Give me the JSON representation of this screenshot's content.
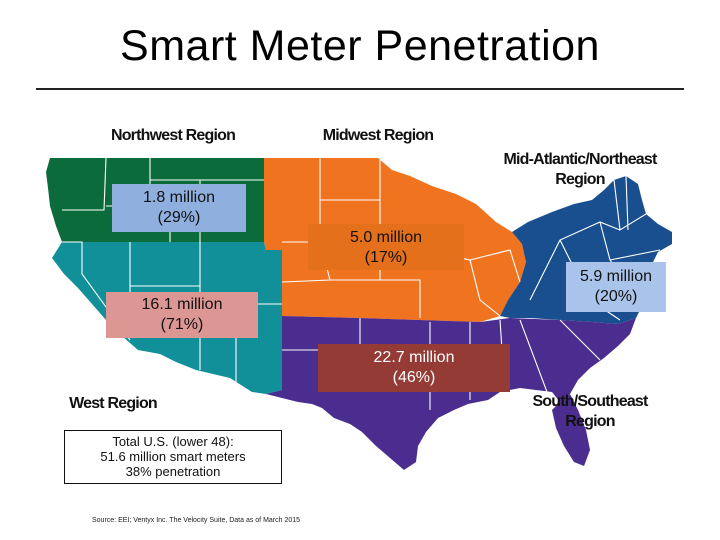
{
  "title": "Smart Meter Penetration",
  "colors": {
    "northwest": "#0b6b3a",
    "midwest": "#f07320",
    "mid_atlantic_northeast": "#1a4f8f",
    "west": "#12909a",
    "south_southeast": "#4a2d8f",
    "state_lines": "#ffffff"
  },
  "regions": {
    "northwest": {
      "label": "Northwest Region",
      "meters": "1.8 million",
      "penetration": "(29%)",
      "box_color": "#8fb0df"
    },
    "midwest": {
      "label": "Midwest Region",
      "meters": "5.0 million",
      "penetration": "(17%)",
      "box_color": "#e4701c"
    },
    "mid_atlantic_northeast": {
      "label_line1": "Mid-Atlantic/Northeast",
      "label_line2": "Region",
      "meters": "5.9 million",
      "penetration": "(20%)",
      "box_color": "#a9c3ea"
    },
    "west": {
      "label": "West Region",
      "meters": "16.1 million",
      "penetration": "(71%)",
      "box_color": "#dc9694"
    },
    "south_southeast": {
      "label_line1": "South/Southeast",
      "label_line2": "Region",
      "meters": "22.7 million",
      "penetration": "(46%)",
      "box_color": "#953b36"
    }
  },
  "total": {
    "line1": "Total U.S. (lower 48):",
    "line2": "51.6 million smart meters",
    "line3": "38% penetration"
  },
  "source": "Source: EEI; Ventyx Inc. The Velocity Suite, Data as of March 2015"
}
